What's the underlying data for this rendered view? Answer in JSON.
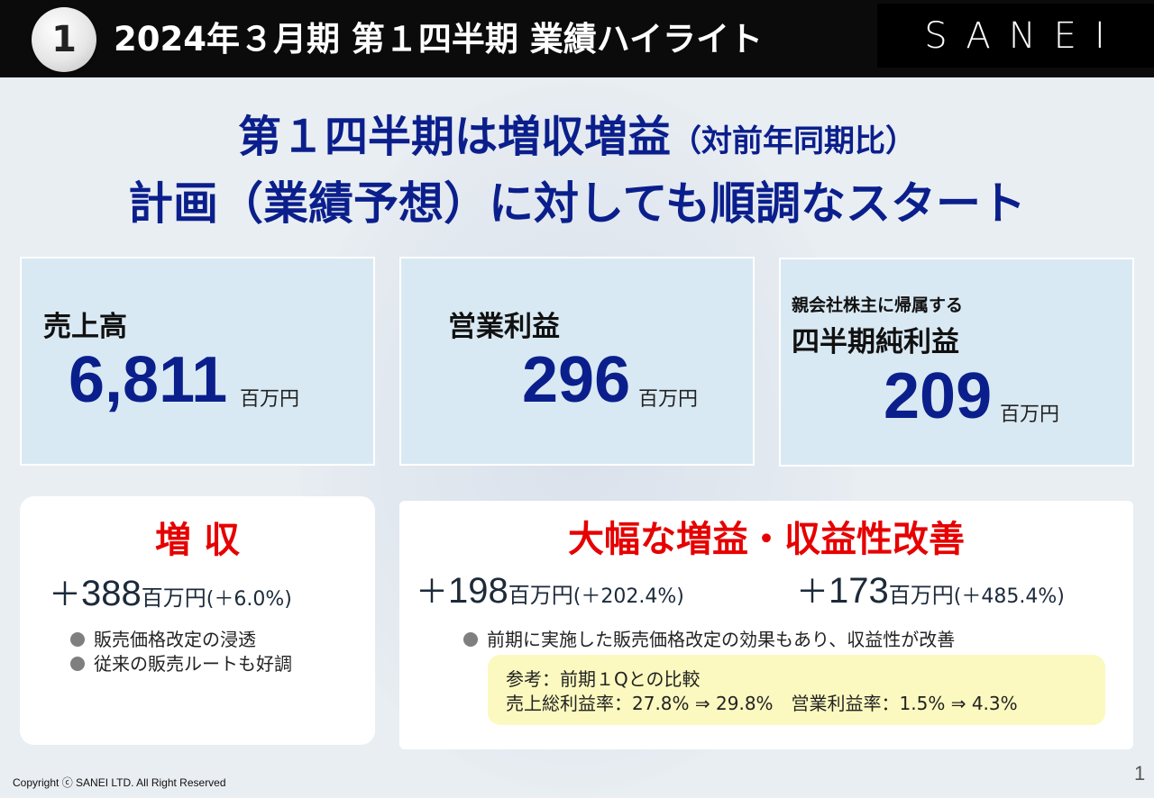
{
  "header": {
    "number": "1",
    "title": "2024年３月期 第１四半期 業績ハイライト",
    "logo_text": "SANEI"
  },
  "headline": {
    "line1_main": "第１四半期は増収増益",
    "line1_sub": "（対前年同期比）",
    "line2": "計画（業績予想）に対しても順調なスタート"
  },
  "cards": [
    {
      "label": "売上高",
      "value": "6,811",
      "unit": "百万円"
    },
    {
      "label": "営業利益",
      "value": "296",
      "unit": "百万円"
    },
    {
      "sub_label": "親会社株主に帰属する",
      "label": "四半期純利益",
      "value": "209",
      "unit": "百万円"
    }
  ],
  "revenue_panel": {
    "heading": "増 収",
    "delta_sign": "＋",
    "delta_value": "388",
    "delta_unit": "百万円",
    "delta_pct": "(＋6.0%)",
    "bullets": [
      "販売価格改定の浸透",
      "従来の販売ルートも好調"
    ]
  },
  "profit_panel": {
    "heading": "大幅な増益・収益性改善",
    "delta1_sign": "＋",
    "delta1_value": "198",
    "delta1_unit": "百万円",
    "delta1_pct": "(＋202.4%)",
    "delta2_sign": "＋",
    "delta2_value": "173",
    "delta2_unit": "百万円",
    "delta2_pct": "(＋485.4%)",
    "bullet": "前期に実施した販売価格改定の効果もあり、収益性が改善",
    "note_line1": "参考：前期１Qとの比較",
    "note_line2": "売上総利益率：27.8% ⇒ 29.8%　営業利益率：1.5% ⇒ 4.3%"
  },
  "footer": {
    "copyright": "Copyright ⓒ SANEI LTD. All Right Reserved",
    "page_number": "1"
  }
}
